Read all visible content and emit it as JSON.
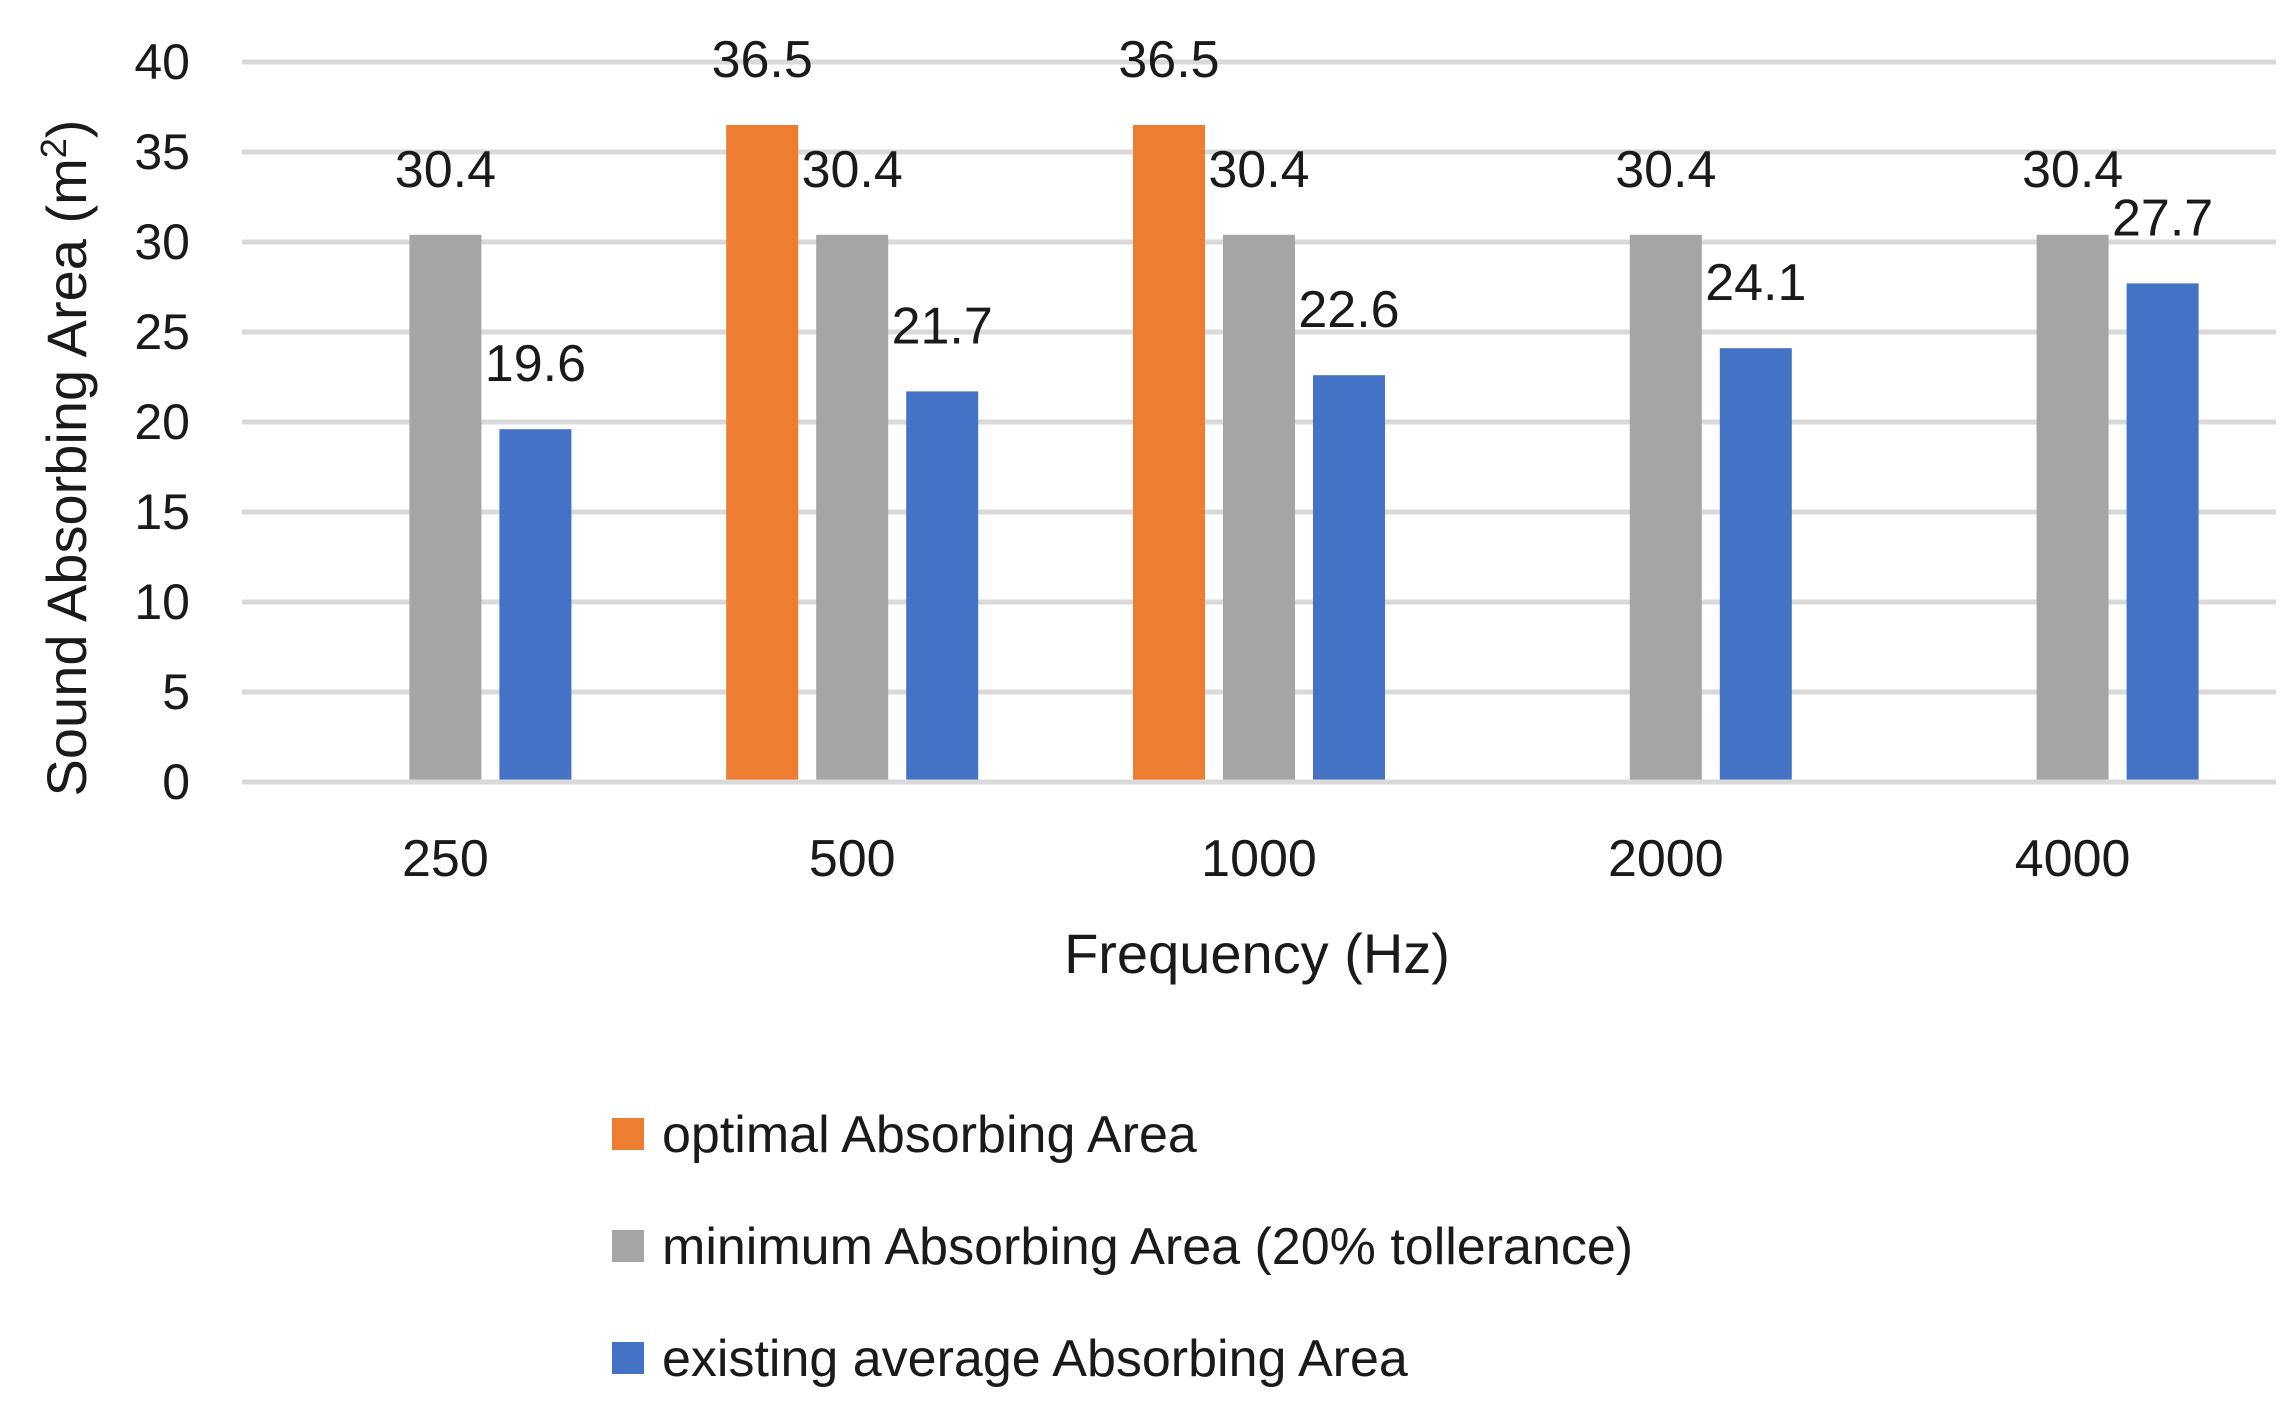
{
  "chart_data": {
    "type": "bar",
    "title": "",
    "xlabel": "Frequency (Hz)",
    "ylabel": "Sound Absorbing Area (m",
    "ylabel_superscript": "2",
    "ylabel_close": ")",
    "categories": [
      "250",
      "500",
      "1000",
      "2000",
      "4000"
    ],
    "ylim": [
      0,
      40
    ],
    "yticks": [
      "0",
      "5",
      "10",
      "15",
      "20",
      "25",
      "30",
      "35",
      "40"
    ],
    "ytick_values": [
      0,
      5,
      10,
      15,
      20,
      25,
      30,
      35,
      40
    ],
    "grid": true,
    "legend_position": "bottom",
    "series": [
      {
        "name": "optimal Absorbing Area",
        "color": "#ED7D31",
        "values": [
          null,
          36.5,
          36.5,
          null,
          null
        ]
      },
      {
        "name": "minimum Absorbing Area (20% tollerance)",
        "color": "#A5A5A5",
        "values": [
          30.4,
          30.4,
          30.4,
          30.4,
          30.4
        ]
      },
      {
        "name": "existing average Absorbing Area",
        "color": "#4472C4",
        "values": [
          19.6,
          21.7,
          22.6,
          24.1,
          27.7
        ]
      }
    ]
  }
}
